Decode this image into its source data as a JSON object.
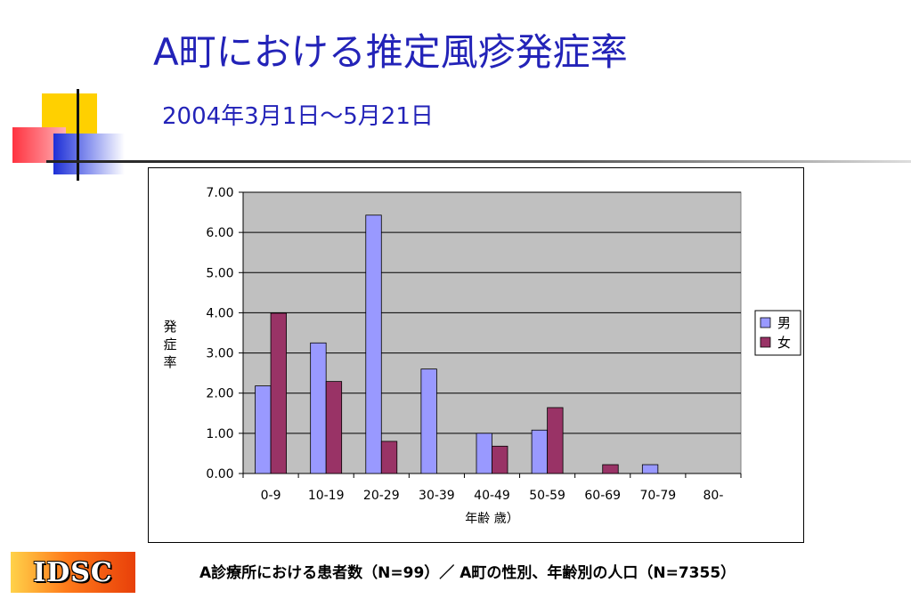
{
  "slide": {
    "title": "A町における推定風疹発症率",
    "subtitle": "2004年3月1日～5月21日",
    "footer": "A診療所における患者数（N=99）／ A町の性別、年齢別の人口（N=7355）",
    "logo_text": "IDSC"
  },
  "chart_data": {
    "type": "bar",
    "title": "",
    "xlabel": "年齢  歳）",
    "ylabel": "発症率",
    "ylim": [
      0,
      7
    ],
    "yticks": [
      "0.00",
      "1.00",
      "2.00",
      "3.00",
      "4.00",
      "5.00",
      "6.00",
      "7.00"
    ],
    "categories": [
      "0-9",
      "10-19",
      "20-29",
      "30-39",
      "40-49",
      "50-59",
      "60-69",
      "70-79",
      "80-"
    ],
    "series": [
      {
        "name": "男",
        "color": "#9999ff",
        "values": [
          2.18,
          3.25,
          6.43,
          2.6,
          1.0,
          1.08,
          0,
          0.22,
          0
        ]
      },
      {
        "name": "女",
        "color": "#993366",
        "values": [
          3.99,
          2.29,
          0.8,
          0,
          0.68,
          1.64,
          0.22,
          0,
          0
        ]
      }
    ],
    "plot_background": "#c0c0c0",
    "grid": true,
    "legend_position": "right"
  }
}
